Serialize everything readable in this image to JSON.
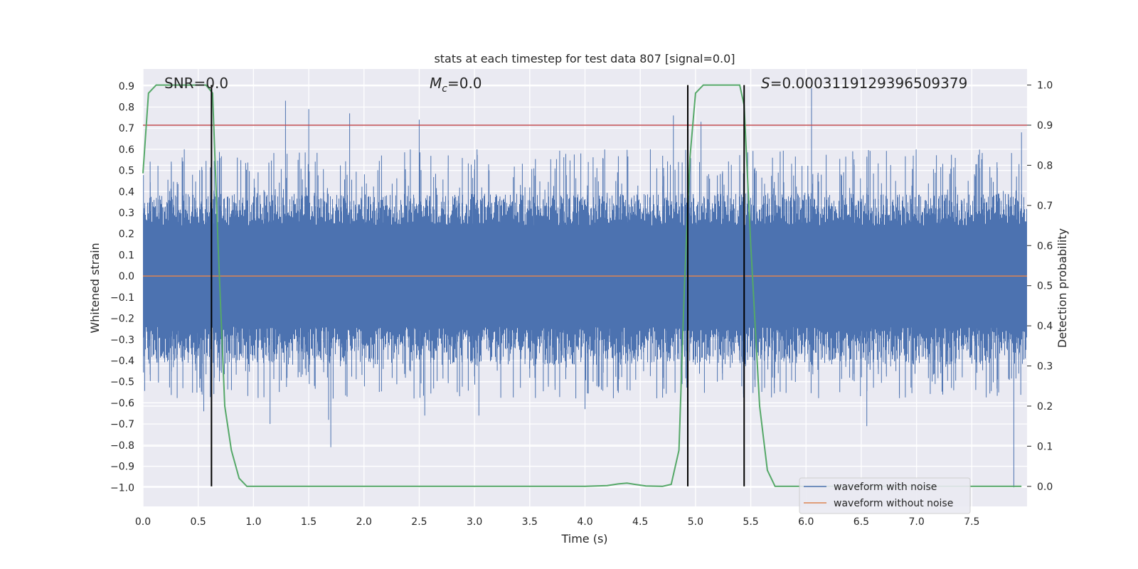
{
  "chart_data": {
    "type": "line",
    "title": "stats at each timestep for test data 807 [signal=0.0]",
    "xlabel": "Time (s)",
    "ylabel": "Whitened strain",
    "y2label": "Detection probability",
    "xlim": [
      0.0,
      8.0
    ],
    "ylim": [
      -1.09,
      0.98
    ],
    "y2lim": [
      -0.05,
      1.04
    ],
    "xticks": [
      "0.0",
      "0.5",
      "1.0",
      "1.5",
      "2.0",
      "2.5",
      "3.0",
      "3.5",
      "4.0",
      "4.5",
      "5.0",
      "5.5",
      "6.0",
      "6.5",
      "7.0",
      "7.5"
    ],
    "xtick_values": [
      0.0,
      0.5,
      1.0,
      1.5,
      2.0,
      2.5,
      3.0,
      3.5,
      4.0,
      4.5,
      5.0,
      5.5,
      6.0,
      6.5,
      7.0,
      7.5
    ],
    "yticks": [
      "0.9",
      "0.8",
      "0.7",
      "0.6",
      "0.5",
      "0.4",
      "0.3",
      "0.2",
      "0.1",
      "0.0",
      "−0.1",
      "−0.2",
      "−0.3",
      "−0.4",
      "−0.5",
      "−0.6",
      "−0.7",
      "−0.8",
      "−0.9",
      "−1.0"
    ],
    "ytick_values": [
      0.9,
      0.8,
      0.7,
      0.6,
      0.5,
      0.4,
      0.3,
      0.2,
      0.1,
      0.0,
      -0.1,
      -0.2,
      -0.3,
      -0.4,
      -0.5,
      -0.6,
      -0.7,
      -0.8,
      -0.9,
      -1.0
    ],
    "y2ticks": [
      "1.0",
      "0.9",
      "0.8",
      "0.7",
      "0.6",
      "0.5",
      "0.4",
      "0.3",
      "0.2",
      "0.1",
      "0.0"
    ],
    "y2tick_values": [
      1.0,
      0.9,
      0.8,
      0.7,
      0.6,
      0.5,
      0.4,
      0.3,
      0.2,
      0.1,
      0.0
    ],
    "grid": true,
    "legend_position": "bottom-right",
    "series": [
      {
        "name": "waveform with noise",
        "axis": "left",
        "color": "#4c72b0",
        "style": "dense-noise",
        "envelope_typical": 0.3,
        "spikes": [
          {
            "x": 0.62,
            "y": 0.64
          },
          {
            "x": 1.29,
            "y": 0.83
          },
          {
            "x": 1.5,
            "y": 0.79
          },
          {
            "x": 1.87,
            "y": 0.77
          },
          {
            "x": 2.5,
            "y": 0.74
          },
          {
            "x": 4.8,
            "y": 0.76
          },
          {
            "x": 5.05,
            "y": 0.73
          },
          {
            "x": 6.05,
            "y": 0.89
          },
          {
            "x": 7.95,
            "y": 0.68
          },
          {
            "x": 0.55,
            "y": -0.64
          },
          {
            "x": 1.15,
            "y": -0.7
          },
          {
            "x": 1.7,
            "y": -0.81
          },
          {
            "x": 1.68,
            "y": -0.68
          },
          {
            "x": 2.55,
            "y": -0.66
          },
          {
            "x": 3.04,
            "y": -0.66
          },
          {
            "x": 4.0,
            "y": -0.63
          },
          {
            "x": 6.55,
            "y": -0.71
          },
          {
            "x": 7.88,
            "y": -1.0
          }
        ]
      },
      {
        "name": "waveform without noise",
        "axis": "left",
        "color": "#dd8452",
        "x": [
          0.0,
          8.0
        ],
        "y": [
          0.0,
          0.0
        ]
      },
      {
        "name": "detection probability",
        "axis": "right",
        "color": "#55a868",
        "x": [
          0.0,
          0.05,
          0.12,
          0.2,
          0.3,
          0.4,
          0.5,
          0.57,
          0.63,
          0.68,
          0.74,
          0.8,
          0.87,
          0.94,
          1.0,
          1.5,
          2.0,
          2.5,
          3.0,
          3.5,
          4.0,
          4.2,
          4.3,
          4.38,
          4.45,
          4.55,
          4.7,
          4.78,
          4.85,
          4.9,
          4.95,
          5.0,
          5.07,
          5.15,
          5.3,
          5.4,
          5.44,
          5.5,
          5.58,
          5.65,
          5.72,
          5.8,
          6.0,
          6.5,
          7.0,
          7.5,
          7.95
        ],
        "y": [
          0.78,
          0.98,
          1.0,
          1.0,
          1.0,
          1.0,
          1.0,
          1.0,
          0.98,
          0.6,
          0.2,
          0.09,
          0.02,
          0.0,
          0.0,
          0.0,
          0.0,
          0.0,
          0.0,
          0.0,
          0.0,
          0.002,
          0.006,
          0.008,
          0.005,
          0.001,
          0.0,
          0.005,
          0.09,
          0.5,
          0.82,
          0.98,
          1.0,
          1.0,
          1.0,
          1.0,
          0.95,
          0.6,
          0.2,
          0.04,
          0.0,
          0.0,
          0.0,
          0.0,
          0.0,
          0.0,
          0.0
        ]
      }
    ],
    "threshold": {
      "axis": "right",
      "y": 0.9,
      "color": "#c44e52"
    },
    "vlines": [
      0.62,
      4.93,
      5.44
    ],
    "vline_color": "#000000",
    "annotations": {
      "snr": "SNR=0.0",
      "mc_symbol": "M",
      "mc_sub": "c",
      "mc_value": "=0.0",
      "s_symbol": "S",
      "s_value": "=0.0003119129396509379"
    },
    "legend": [
      {
        "label": "waveform with noise",
        "color": "#4c72b0"
      },
      {
        "label": "waveform without noise",
        "color": "#dd8452"
      }
    ],
    "background": "#eaeaf2"
  }
}
